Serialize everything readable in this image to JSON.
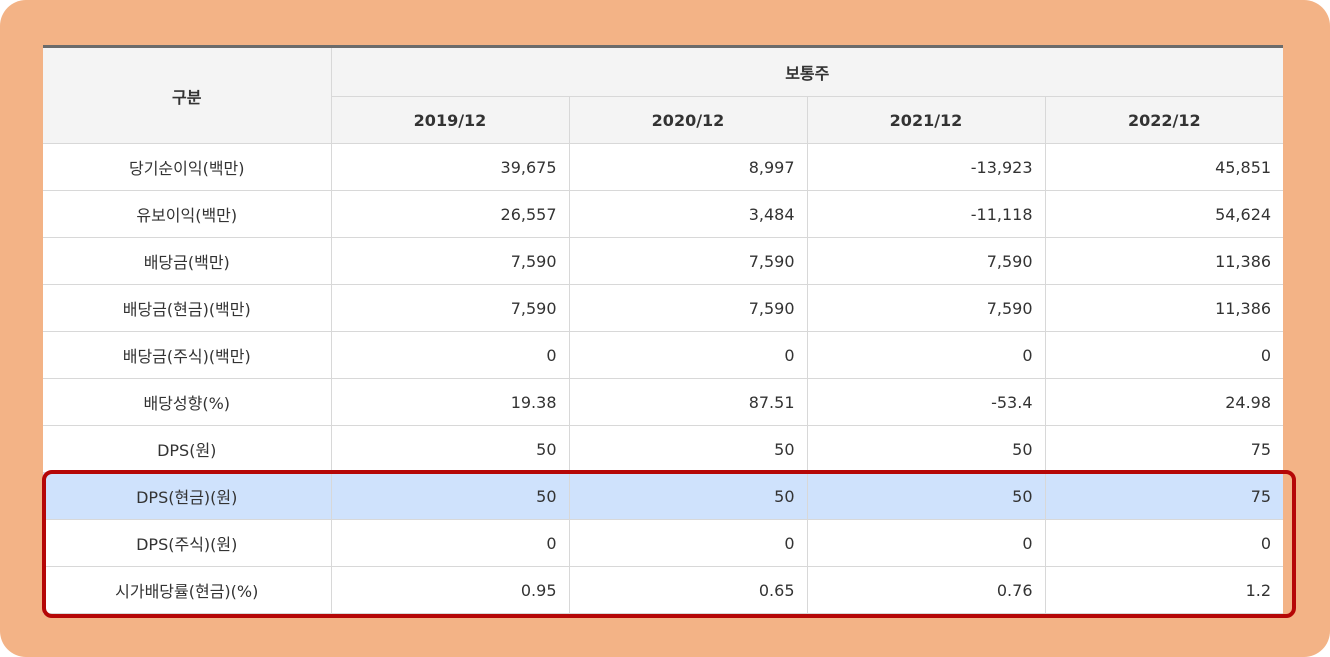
{
  "table": {
    "header": {
      "category_label": "구분",
      "group_label": "보통주",
      "years": [
        "2019/12",
        "2020/12",
        "2021/12",
        "2022/12"
      ]
    },
    "rows": [
      {
        "label": "당기순이익(백만)",
        "values": [
          "39,675",
          "8,997",
          "-13,923",
          "45,851"
        ],
        "highlighted": false
      },
      {
        "label": "유보이익(백만)",
        "values": [
          "26,557",
          "3,484",
          "-11,118",
          "54,624"
        ],
        "highlighted": false
      },
      {
        "label": "배당금(백만)",
        "values": [
          "7,590",
          "7,590",
          "7,590",
          "11,386"
        ],
        "highlighted": false
      },
      {
        "label": "배당금(현금)(백만)",
        "values": [
          "7,590",
          "7,590",
          "7,590",
          "11,386"
        ],
        "highlighted": false
      },
      {
        "label": "배당금(주식)(백만)",
        "values": [
          "0",
          "0",
          "0",
          "0"
        ],
        "highlighted": false
      },
      {
        "label": "배당성향(%)",
        "values": [
          "19.38",
          "87.51",
          "-53.4",
          "24.98"
        ],
        "highlighted": false
      },
      {
        "label": "DPS(원)",
        "values": [
          "50",
          "50",
          "50",
          "75"
        ],
        "highlighted": false
      },
      {
        "label": "DPS(현금)(원)",
        "values": [
          "50",
          "50",
          "50",
          "75"
        ],
        "highlighted": true
      },
      {
        "label": "DPS(주식)(원)",
        "values": [
          "0",
          "0",
          "0",
          "0"
        ],
        "highlighted": false
      },
      {
        "label": "시가배당률(현금)(%)",
        "values": [
          "0.95",
          "0.65",
          "0.76",
          "1.2"
        ],
        "highlighted": false
      }
    ]
  },
  "colors": {
    "frame_background": "#f3b386",
    "callout_border": "#b50707",
    "highlight_row": "#cfe2fc",
    "header_background": "#f4f4f4"
  }
}
